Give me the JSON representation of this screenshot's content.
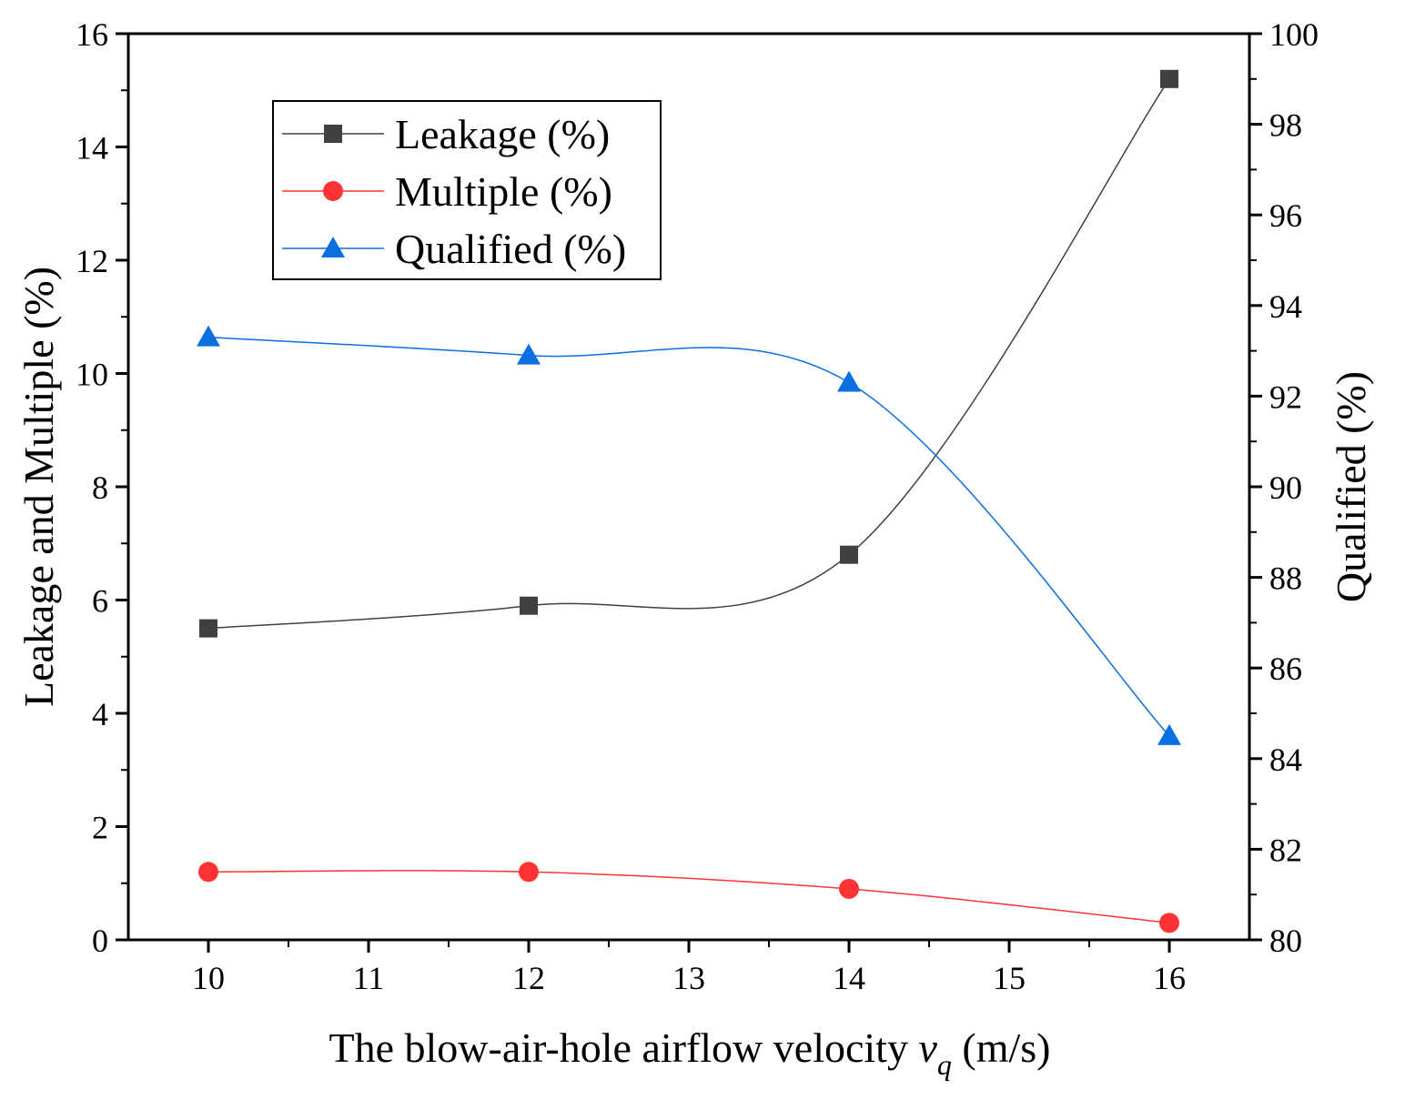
{
  "chart_data": {
    "type": "line",
    "smooth": true,
    "x": [
      10,
      12,
      14,
      16
    ],
    "xlabel_prefix": "The blow-air-hole airflow velocity ",
    "xlabel_var": "v",
    "xlabel_sub": "q",
    "xlabel_unit": " (m/s)",
    "ylabel_left": "Leakage and Multiple (%)",
    "ylabel_right": "Qualified (%)",
    "xlim": [
      9.5,
      16.5
    ],
    "ylim_left": [
      0,
      16
    ],
    "ylim_right": [
      80,
      100
    ],
    "x_ticks": [
      "10",
      "11",
      "12",
      "13",
      "14",
      "15",
      "16"
    ],
    "y_left_ticks": [
      "0",
      "2",
      "4",
      "6",
      "8",
      "10",
      "12",
      "14",
      "16"
    ],
    "y_right_ticks": [
      "80",
      "82",
      "84",
      "86",
      "88",
      "90",
      "92",
      "94",
      "96",
      "98",
      "100"
    ],
    "grid": false,
    "legend_position": "top-left",
    "series": [
      {
        "name": "Leakage (%)",
        "axis": "left",
        "marker": "square",
        "color": "#404040",
        "values": [
          5.5,
          5.9,
          6.8,
          15.2
        ]
      },
      {
        "name": "Multiple (%)",
        "axis": "left",
        "marker": "circle",
        "color": "#ff3333",
        "values": [
          1.2,
          1.2,
          0.9,
          0.3
        ]
      },
      {
        "name": "Qualified (%)",
        "axis": "right",
        "marker": "triangle",
        "color": "#0a6fe0",
        "values": [
          93.3,
          92.9,
          92.3,
          84.5
        ]
      }
    ]
  }
}
